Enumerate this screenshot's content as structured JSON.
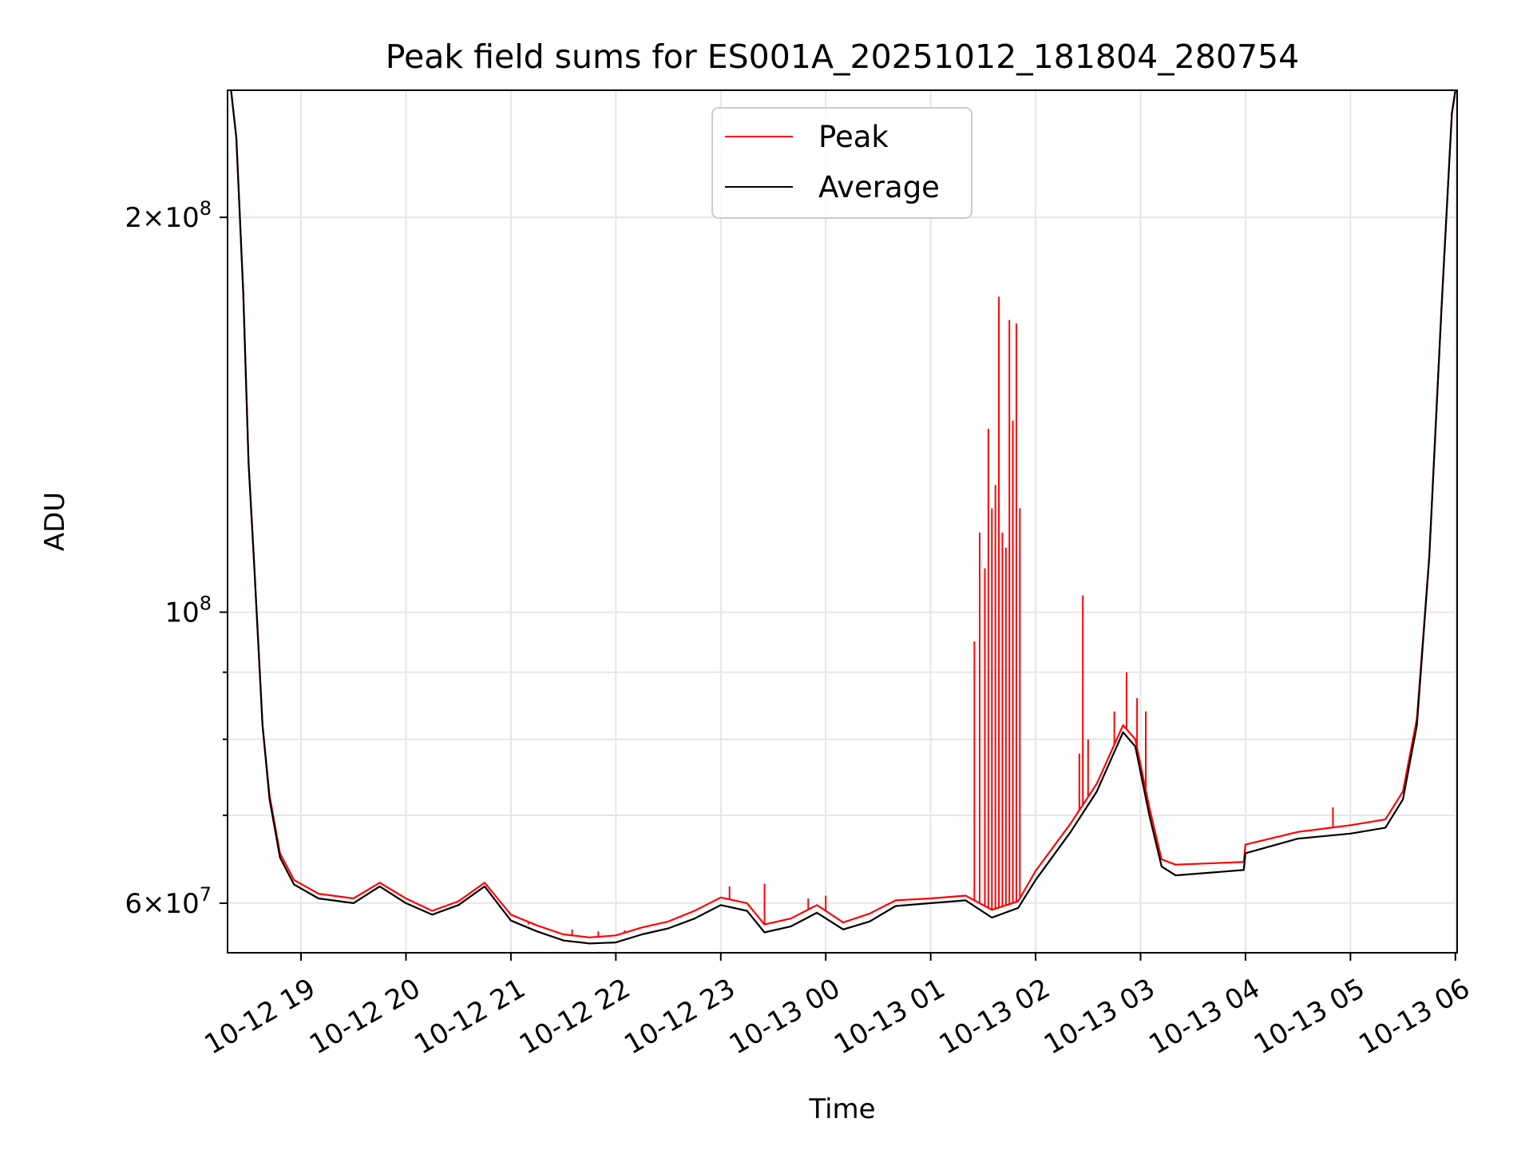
{
  "chart_data": {
    "type": "line",
    "title": "Peak field sums for ES001A_20251012_181804_280754",
    "xlabel": "Time",
    "ylabel": "ADU",
    "yscale": "log",
    "grid": true,
    "legend_position": "top-center",
    "x_range": [
      "2025-10-12T18:18",
      "2025-10-13T06:01"
    ],
    "ylim": [
      55000000,
      250000000
    ],
    "x_ticks": [
      {
        "t": "2025-10-12T19:00",
        "label": "10-12 19"
      },
      {
        "t": "2025-10-12T20:00",
        "label": "10-12 20"
      },
      {
        "t": "2025-10-12T21:00",
        "label": "10-12 21"
      },
      {
        "t": "2025-10-12T22:00",
        "label": "10-12 22"
      },
      {
        "t": "2025-10-12T23:00",
        "label": "10-12 23"
      },
      {
        "t": "2025-10-13T00:00",
        "label": "10-13 00"
      },
      {
        "t": "2025-10-13T01:00",
        "label": "10-13 01"
      },
      {
        "t": "2025-10-13T02:00",
        "label": "10-13 02"
      },
      {
        "t": "2025-10-13T03:00",
        "label": "10-13 03"
      },
      {
        "t": "2025-10-13T04:00",
        "label": "10-13 04"
      },
      {
        "t": "2025-10-13T05:00",
        "label": "10-13 05"
      },
      {
        "t": "2025-10-13T06:00",
        "label": "10-13 06"
      }
    ],
    "y_major_ticks": [
      {
        "value": 60000000,
        "base": "6",
        "exp": "7"
      },
      {
        "value": 100000000,
        "base": "",
        "exp": "8"
      },
      {
        "value": 200000000,
        "base": "2",
        "exp": "8"
      }
    ],
    "y_minor_ticks": [
      70000000,
      80000000,
      90000000,
      300000000
    ],
    "series": [
      {
        "name": "Average",
        "color": "#000000",
        "points": [
          [
            "2025-10-12T18:20",
            250000000
          ],
          [
            "2025-10-12T18:23",
            230000000
          ],
          [
            "2025-10-12T18:27",
            175000000
          ],
          [
            "2025-10-12T18:30",
            130000000
          ],
          [
            "2025-10-12T18:33",
            110000000
          ],
          [
            "2025-10-12T18:35",
            98000000
          ],
          [
            "2025-10-12T18:38",
            82000000
          ],
          [
            "2025-10-12T18:42",
            72000000
          ],
          [
            "2025-10-12T18:48",
            65000000
          ],
          [
            "2025-10-12T18:56",
            62000000
          ],
          [
            "2025-10-12T19:10",
            60500000
          ],
          [
            "2025-10-12T19:30",
            60000000
          ],
          [
            "2025-10-12T19:45",
            61800000
          ],
          [
            "2025-10-12T20:00",
            60000000
          ],
          [
            "2025-10-12T20:15",
            58800000
          ],
          [
            "2025-10-12T20:30",
            59800000
          ],
          [
            "2025-10-12T20:45",
            61800000
          ],
          [
            "2025-10-12T21:00",
            58200000
          ],
          [
            "2025-10-12T21:15",
            57100000
          ],
          [
            "2025-10-12T21:30",
            56200000
          ],
          [
            "2025-10-12T21:45",
            55900000
          ],
          [
            "2025-10-12T22:00",
            56000000
          ],
          [
            "2025-10-12T22:15",
            56800000
          ],
          [
            "2025-10-12T22:30",
            57400000
          ],
          [
            "2025-10-12T22:45",
            58400000
          ],
          [
            "2025-10-12T23:00",
            59800000
          ],
          [
            "2025-10-12T23:15",
            59200000
          ],
          [
            "2025-10-12T23:25",
            57000000
          ],
          [
            "2025-10-12T23:40",
            57600000
          ],
          [
            "2025-10-12T23:55",
            59000000
          ],
          [
            "2025-10-13T00:10",
            57300000
          ],
          [
            "2025-10-13T00:25",
            58100000
          ],
          [
            "2025-10-13T00:40",
            59700000
          ],
          [
            "2025-10-13T01:00",
            60000000
          ],
          [
            "2025-10-13T01:20",
            60300000
          ],
          [
            "2025-10-13T01:35",
            58500000
          ],
          [
            "2025-10-13T01:50",
            59500000
          ],
          [
            "2025-10-13T02:00",
            62500000
          ],
          [
            "2025-10-13T02:20",
            68000000
          ],
          [
            "2025-10-13T02:35",
            73000000
          ],
          [
            "2025-10-13T02:50",
            81000000
          ],
          [
            "2025-10-13T02:57",
            79000000
          ],
          [
            "2025-10-13T03:05",
            70000000
          ],
          [
            "2025-10-13T03:12",
            64000000
          ],
          [
            "2025-10-13T03:20",
            63000000
          ],
          [
            "2025-10-13T03:59",
            63600000
          ],
          [
            "2025-10-13T04:00",
            65500000
          ],
          [
            "2025-10-13T04:30",
            67200000
          ],
          [
            "2025-10-13T05:00",
            67800000
          ],
          [
            "2025-10-13T05:20",
            68500000
          ],
          [
            "2025-10-13T05:30",
            72000000
          ],
          [
            "2025-10-13T05:38",
            82000000
          ],
          [
            "2025-10-13T05:45",
            110000000
          ],
          [
            "2025-10-13T05:52",
            170000000
          ],
          [
            "2025-10-13T05:58",
            240000000
          ],
          [
            "2025-10-13T06:00",
            250000000
          ]
        ]
      },
      {
        "name": "Peak",
        "color": "#ff0000",
        "points": [
          [
            "2025-10-12T18:20",
            250000000
          ],
          [
            "2025-10-12T18:23",
            230000000
          ],
          [
            "2025-10-12T18:27",
            175000000
          ],
          [
            "2025-10-12T18:30",
            130000000
          ],
          [
            "2025-10-12T18:33",
            110000000
          ],
          [
            "2025-10-12T18:35",
            98000000
          ],
          [
            "2025-10-12T18:38",
            82000000
          ],
          [
            "2025-10-12T18:42",
            72500000
          ],
          [
            "2025-10-12T18:48",
            65500000
          ],
          [
            "2025-10-12T18:56",
            62500000
          ],
          [
            "2025-10-12T19:10",
            61000000
          ],
          [
            "2025-10-12T19:30",
            60500000
          ],
          [
            "2025-10-12T19:45",
            62200000
          ],
          [
            "2025-10-12T20:00",
            60500000
          ],
          [
            "2025-10-12T20:15",
            59200000
          ],
          [
            "2025-10-12T20:30",
            60200000
          ],
          [
            "2025-10-12T20:45",
            62200000
          ],
          [
            "2025-10-12T21:00",
            58800000
          ],
          [
            "2025-10-12T21:15",
            57700000
          ],
          [
            "2025-10-12T21:30",
            56800000
          ],
          [
            "2025-10-12T21:45",
            56500000
          ],
          [
            "2025-10-12T22:00",
            56700000
          ],
          [
            "2025-10-12T22:15",
            57500000
          ],
          [
            "2025-10-12T22:30",
            58100000
          ],
          [
            "2025-10-12T22:45",
            59200000
          ],
          [
            "2025-10-12T23:00",
            60600000
          ],
          [
            "2025-10-12T23:15",
            60000000
          ],
          [
            "2025-10-12T23:25",
            57800000
          ],
          [
            "2025-10-12T23:40",
            58400000
          ],
          [
            "2025-10-12T23:55",
            59800000
          ],
          [
            "2025-10-13T00:10",
            58000000
          ],
          [
            "2025-10-13T00:25",
            58900000
          ],
          [
            "2025-10-13T00:40",
            60300000
          ],
          [
            "2025-10-13T01:00",
            60500000
          ],
          [
            "2025-10-13T01:20",
            60800000
          ],
          [
            "2025-10-13T01:35",
            59300000
          ],
          [
            "2025-10-13T01:50",
            60200000
          ],
          [
            "2025-10-13T02:00",
            63500000
          ],
          [
            "2025-10-13T02:20",
            69000000
          ],
          [
            "2025-10-13T02:35",
            74000000
          ],
          [
            "2025-10-13T02:50",
            82000000
          ],
          [
            "2025-10-13T02:57",
            80000000
          ],
          [
            "2025-10-13T03:05",
            71000000
          ],
          [
            "2025-10-13T03:12",
            64800000
          ],
          [
            "2025-10-13T03:20",
            64200000
          ],
          [
            "2025-10-13T03:59",
            64500000
          ],
          [
            "2025-10-13T04:00",
            66500000
          ],
          [
            "2025-10-13T04:30",
            68000000
          ],
          [
            "2025-10-13T05:00",
            68800000
          ],
          [
            "2025-10-13T05:20",
            69500000
          ],
          [
            "2025-10-13T05:30",
            73000000
          ],
          [
            "2025-10-13T05:38",
            83000000
          ],
          [
            "2025-10-13T05:45",
            110000000
          ],
          [
            "2025-10-13T05:52",
            170000000
          ],
          [
            "2025-10-13T05:58",
            240000000
          ],
          [
            "2025-10-13T06:00",
            250000000
          ]
        ],
        "spikes": [
          [
            "2025-10-12T21:10",
            57800000
          ],
          [
            "2025-10-12T21:20",
            57400000
          ],
          [
            "2025-10-12T21:35",
            57300000
          ],
          [
            "2025-10-12T21:50",
            57100000
          ],
          [
            "2025-10-12T22:05",
            57200000
          ],
          [
            "2025-10-12T23:05",
            61800000
          ],
          [
            "2025-10-12T23:25",
            62100000
          ],
          [
            "2025-10-12T23:50",
            60500000
          ],
          [
            "2025-10-13T00:00",
            60800000
          ],
          [
            "2025-10-13T01:25",
            95000000
          ],
          [
            "2025-10-13T01:28",
            115000000
          ],
          [
            "2025-10-13T01:31",
            108000000
          ],
          [
            "2025-10-13T01:33",
            138000000
          ],
          [
            "2025-10-13T01:35",
            120000000
          ],
          [
            "2025-10-13T01:37",
            125000000
          ],
          [
            "2025-10-13T01:39",
            174000000
          ],
          [
            "2025-10-13T01:41",
            115000000
          ],
          [
            "2025-10-13T01:43",
            112000000
          ],
          [
            "2025-10-13T01:45",
            167000000
          ],
          [
            "2025-10-13T01:47",
            140000000
          ],
          [
            "2025-10-13T01:49",
            166000000
          ],
          [
            "2025-10-13T01:51",
            120000000
          ],
          [
            "2025-10-13T02:25",
            78000000
          ],
          [
            "2025-10-13T02:27",
            103000000
          ],
          [
            "2025-10-13T02:30",
            80000000
          ],
          [
            "2025-10-13T02:45",
            84000000
          ],
          [
            "2025-10-13T02:52",
            90000000
          ],
          [
            "2025-10-13T02:58",
            86000000
          ],
          [
            "2025-10-13T03:03",
            84000000
          ],
          [
            "2025-10-13T04:50",
            71000000
          ]
        ]
      }
    ],
    "legend": [
      "Peak",
      "Average"
    ]
  }
}
